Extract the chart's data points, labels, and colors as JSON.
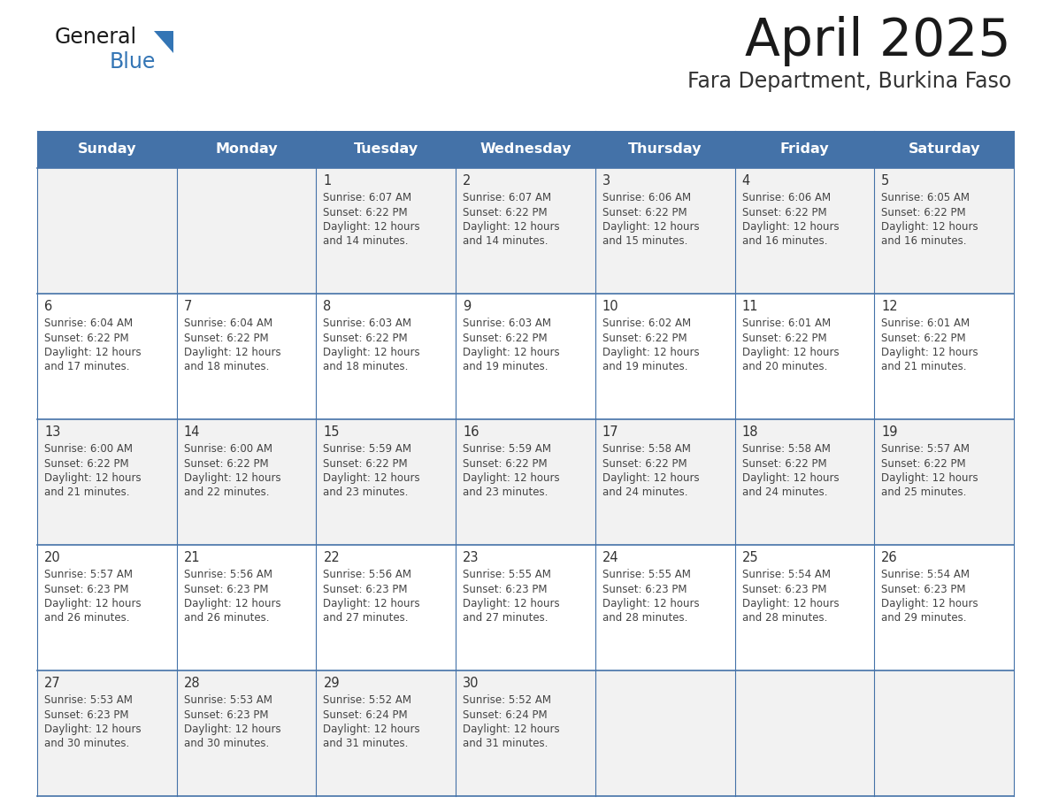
{
  "title": "April 2025",
  "subtitle": "Fara Department, Burkina Faso",
  "days_of_week": [
    "Sunday",
    "Monday",
    "Tuesday",
    "Wednesday",
    "Thursday",
    "Friday",
    "Saturday"
  ],
  "header_bg": "#4472A8",
  "header_text_color": "#FFFFFF",
  "cell_bg_even": "#F2F2F2",
  "cell_bg_odd": "#FFFFFF",
  "cell_text_color": "#444444",
  "day_num_color": "#333333",
  "grid_line_color": "#4472A8",
  "title_color": "#1a1a1a",
  "subtitle_color": "#333333",
  "logo_general_color": "#1a1a1a",
  "logo_blue_color": "#3375B5",
  "weeks": [
    [
      {
        "date": "",
        "sunrise": "",
        "sunset": "",
        "daylight": ""
      },
      {
        "date": "",
        "sunrise": "",
        "sunset": "",
        "daylight": ""
      },
      {
        "date": "1",
        "sunrise": "6:07 AM",
        "sunset": "6:22 PM",
        "daylight": "12 hours\nand 14 minutes."
      },
      {
        "date": "2",
        "sunrise": "6:07 AM",
        "sunset": "6:22 PM",
        "daylight": "12 hours\nand 14 minutes."
      },
      {
        "date": "3",
        "sunrise": "6:06 AM",
        "sunset": "6:22 PM",
        "daylight": "12 hours\nand 15 minutes."
      },
      {
        "date": "4",
        "sunrise": "6:06 AM",
        "sunset": "6:22 PM",
        "daylight": "12 hours\nand 16 minutes."
      },
      {
        "date": "5",
        "sunrise": "6:05 AM",
        "sunset": "6:22 PM",
        "daylight": "12 hours\nand 16 minutes."
      }
    ],
    [
      {
        "date": "6",
        "sunrise": "6:04 AM",
        "sunset": "6:22 PM",
        "daylight": "12 hours\nand 17 minutes."
      },
      {
        "date": "7",
        "sunrise": "6:04 AM",
        "sunset": "6:22 PM",
        "daylight": "12 hours\nand 18 minutes."
      },
      {
        "date": "8",
        "sunrise": "6:03 AM",
        "sunset": "6:22 PM",
        "daylight": "12 hours\nand 18 minutes."
      },
      {
        "date": "9",
        "sunrise": "6:03 AM",
        "sunset": "6:22 PM",
        "daylight": "12 hours\nand 19 minutes."
      },
      {
        "date": "10",
        "sunrise": "6:02 AM",
        "sunset": "6:22 PM",
        "daylight": "12 hours\nand 19 minutes."
      },
      {
        "date": "11",
        "sunrise": "6:01 AM",
        "sunset": "6:22 PM",
        "daylight": "12 hours\nand 20 minutes."
      },
      {
        "date": "12",
        "sunrise": "6:01 AM",
        "sunset": "6:22 PM",
        "daylight": "12 hours\nand 21 minutes."
      }
    ],
    [
      {
        "date": "13",
        "sunrise": "6:00 AM",
        "sunset": "6:22 PM",
        "daylight": "12 hours\nand 21 minutes."
      },
      {
        "date": "14",
        "sunrise": "6:00 AM",
        "sunset": "6:22 PM",
        "daylight": "12 hours\nand 22 minutes."
      },
      {
        "date": "15",
        "sunrise": "5:59 AM",
        "sunset": "6:22 PM",
        "daylight": "12 hours\nand 23 minutes."
      },
      {
        "date": "16",
        "sunrise": "5:59 AM",
        "sunset": "6:22 PM",
        "daylight": "12 hours\nand 23 minutes."
      },
      {
        "date": "17",
        "sunrise": "5:58 AM",
        "sunset": "6:22 PM",
        "daylight": "12 hours\nand 24 minutes."
      },
      {
        "date": "18",
        "sunrise": "5:58 AM",
        "sunset": "6:22 PM",
        "daylight": "12 hours\nand 24 minutes."
      },
      {
        "date": "19",
        "sunrise": "5:57 AM",
        "sunset": "6:22 PM",
        "daylight": "12 hours\nand 25 minutes."
      }
    ],
    [
      {
        "date": "20",
        "sunrise": "5:57 AM",
        "sunset": "6:23 PM",
        "daylight": "12 hours\nand 26 minutes."
      },
      {
        "date": "21",
        "sunrise": "5:56 AM",
        "sunset": "6:23 PM",
        "daylight": "12 hours\nand 26 minutes."
      },
      {
        "date": "22",
        "sunrise": "5:56 AM",
        "sunset": "6:23 PM",
        "daylight": "12 hours\nand 27 minutes."
      },
      {
        "date": "23",
        "sunrise": "5:55 AM",
        "sunset": "6:23 PM",
        "daylight": "12 hours\nand 27 minutes."
      },
      {
        "date": "24",
        "sunrise": "5:55 AM",
        "sunset": "6:23 PM",
        "daylight": "12 hours\nand 28 minutes."
      },
      {
        "date": "25",
        "sunrise": "5:54 AM",
        "sunset": "6:23 PM",
        "daylight": "12 hours\nand 28 minutes."
      },
      {
        "date": "26",
        "sunrise": "5:54 AM",
        "sunset": "6:23 PM",
        "daylight": "12 hours\nand 29 minutes."
      }
    ],
    [
      {
        "date": "27",
        "sunrise": "5:53 AM",
        "sunset": "6:23 PM",
        "daylight": "12 hours\nand 30 minutes."
      },
      {
        "date": "28",
        "sunrise": "5:53 AM",
        "sunset": "6:23 PM",
        "daylight": "12 hours\nand 30 minutes."
      },
      {
        "date": "29",
        "sunrise": "5:52 AM",
        "sunset": "6:24 PM",
        "daylight": "12 hours\nand 31 minutes."
      },
      {
        "date": "30",
        "sunrise": "5:52 AM",
        "sunset": "6:24 PM",
        "daylight": "12 hours\nand 31 minutes."
      },
      {
        "date": "",
        "sunrise": "",
        "sunset": "",
        "daylight": ""
      },
      {
        "date": "",
        "sunrise": "",
        "sunset": "",
        "daylight": ""
      },
      {
        "date": "",
        "sunrise": "",
        "sunset": "",
        "daylight": ""
      }
    ]
  ]
}
